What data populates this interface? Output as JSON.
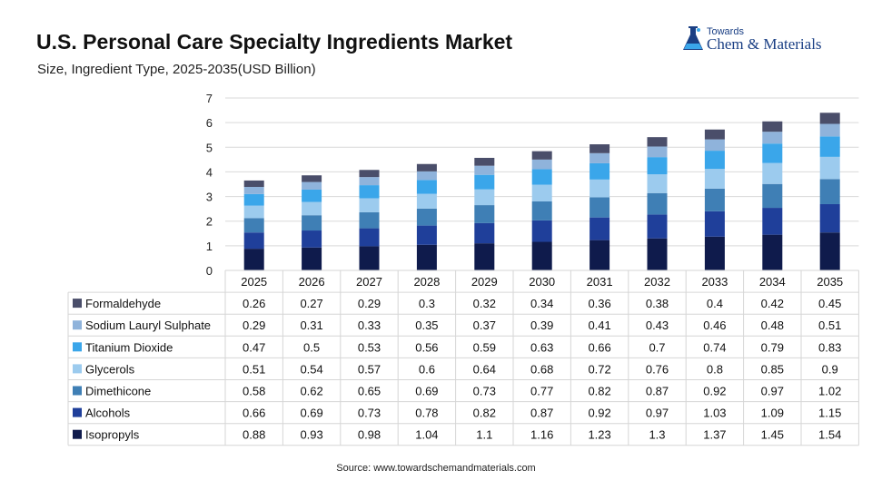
{
  "header": {
    "title": "U.S. Personal Care Specialty Ingredients Market",
    "subtitle": "Size, Ingredient Type, 2025-2035(USD Billion)"
  },
  "brand": {
    "top": "Towards",
    "main": "Chem & Materials",
    "color": "#1a3f84"
  },
  "source": "Source: www.towardschemandmaterials.com",
  "chart_data": {
    "type": "bar",
    "stacked": true,
    "categories": [
      "2025",
      "2026",
      "2027",
      "2028",
      "2029",
      "2030",
      "2031",
      "2032",
      "2033",
      "2034",
      "2035"
    ],
    "ylim": [
      0,
      7
    ],
    "yticks": [
      0,
      1,
      2,
      3,
      4,
      5,
      6,
      7
    ],
    "grid": true,
    "legend": "table-left",
    "series": [
      {
        "name": "Isopropyls",
        "color": "#0f1b4c",
        "values": [
          0.88,
          0.93,
          0.98,
          1.04,
          1.1,
          1.16,
          1.23,
          1.3,
          1.37,
          1.45,
          1.54
        ]
      },
      {
        "name": "Alcohols",
        "color": "#1f3f9a",
        "values": [
          0.66,
          0.69,
          0.73,
          0.78,
          0.82,
          0.87,
          0.92,
          0.97,
          1.03,
          1.09,
          1.15
        ]
      },
      {
        "name": "Dimethicone",
        "color": "#3f7fb5",
        "values": [
          0.58,
          0.62,
          0.65,
          0.69,
          0.73,
          0.77,
          0.82,
          0.87,
          0.92,
          0.97,
          1.02
        ]
      },
      {
        "name": "Glycerols",
        "color": "#9ccbee",
        "values": [
          0.51,
          0.54,
          0.57,
          0.6,
          0.64,
          0.68,
          0.72,
          0.76,
          0.8,
          0.85,
          0.9
        ]
      },
      {
        "name": "Titanium Dioxide",
        "color": "#3aa6ea",
        "values": [
          0.47,
          0.5,
          0.53,
          0.56,
          0.59,
          0.63,
          0.66,
          0.7,
          0.74,
          0.79,
          0.83
        ]
      },
      {
        "name": "Sodium Lauryl Sulphate",
        "color": "#8fb3db",
        "values": [
          0.29,
          0.31,
          0.33,
          0.35,
          0.37,
          0.39,
          0.41,
          0.43,
          0.46,
          0.48,
          0.51
        ]
      },
      {
        "name": "Formaldehyde",
        "color": "#4a4e6a",
        "values": [
          0.26,
          0.27,
          0.29,
          0.3,
          0.32,
          0.34,
          0.36,
          0.38,
          0.4,
          0.42,
          0.45
        ]
      }
    ],
    "table_row_order": [
      "Formaldehyde",
      "Sodium Lauryl Sulphate",
      "Titanium Dioxide",
      "Glycerols",
      "Dimethicone",
      "Alcohols",
      "Isopropyls"
    ],
    "table_values_text": {
      "Formaldehyde": [
        "0.26",
        "0.27",
        "0.29",
        "0.3",
        "0.32",
        "0.34",
        "0.36",
        "0.38",
        "0.4",
        "0.42",
        "0.45"
      ],
      "Sodium Lauryl Sulphate": [
        "0.29",
        "0.31",
        "0.33",
        "0.35",
        "0.37",
        "0.39",
        "0.41",
        "0.43",
        "0.46",
        "0.48",
        "0.51"
      ],
      "Titanium Dioxide": [
        "0.47",
        "0.5",
        "0.53",
        "0.56",
        "0.59",
        "0.63",
        "0.66",
        "0.7",
        "0.74",
        "0.79",
        "0.83"
      ],
      "Glycerols": [
        "0.51",
        "0.54",
        "0.57",
        "0.6",
        "0.64",
        "0.68",
        "0.72",
        "0.76",
        "0.8",
        "0.85",
        "0.9"
      ],
      "Dimethicone": [
        "0.58",
        "0.62",
        "0.65",
        "0.69",
        "0.73",
        "0.77",
        "0.82",
        "0.87",
        "0.92",
        "0.97",
        "1.02"
      ],
      "Alcohols": [
        "0.66",
        "0.69",
        "0.73",
        "0.78",
        "0.82",
        "0.87",
        "0.92",
        "0.97",
        "1.03",
        "1.09",
        "1.15"
      ],
      "Isopropyls": [
        "0.88",
        "0.93",
        "0.98",
        "1.04",
        "1.1",
        "1.16",
        "1.23",
        "1.3",
        "1.37",
        "1.45",
        "1.54"
      ]
    }
  }
}
